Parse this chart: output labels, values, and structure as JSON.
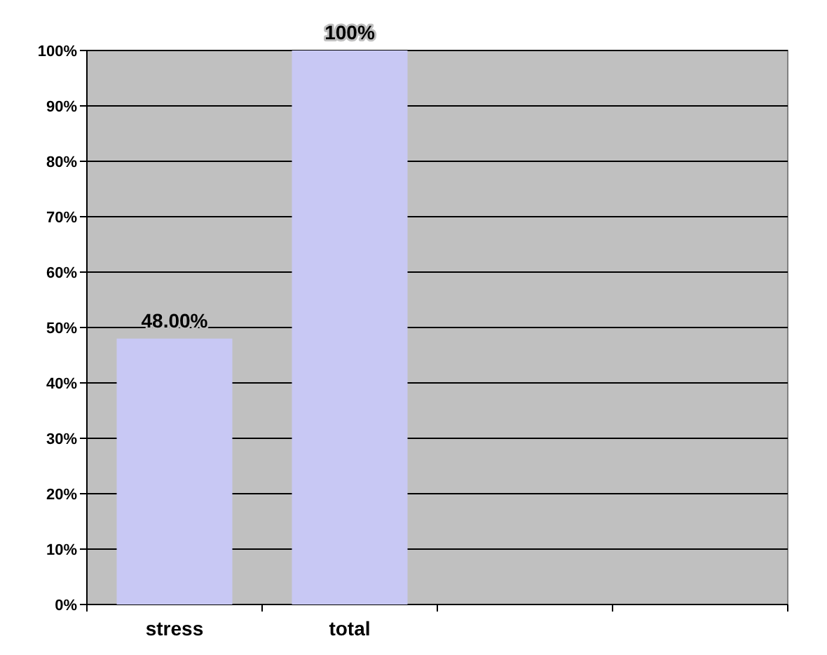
{
  "chart_data": {
    "type": "bar",
    "categories": [
      "stress",
      "total",
      null,
      null
    ],
    "values": [
      48,
      100,
      null,
      null
    ],
    "value_labels": [
      "48.00%",
      "100%",
      null,
      null
    ],
    "color": "#c8c8f4",
    "ylim": [
      0,
      100
    ],
    "yticks": [
      {
        "value": 0,
        "label": "0%"
      },
      {
        "value": 10,
        "label": "10%"
      },
      {
        "value": 20,
        "label": "20%"
      },
      {
        "value": 30,
        "label": "30%"
      },
      {
        "value": 40,
        "label": "40%"
      },
      {
        "value": 50,
        "label": "50%"
      },
      {
        "value": 60,
        "label": "60%"
      },
      {
        "value": 70,
        "label": "70%"
      },
      {
        "value": 80,
        "label": "80%"
      },
      {
        "value": 90,
        "label": "90%"
      },
      {
        "value": 100,
        "label": "100%"
      }
    ],
    "grid": "y"
  }
}
